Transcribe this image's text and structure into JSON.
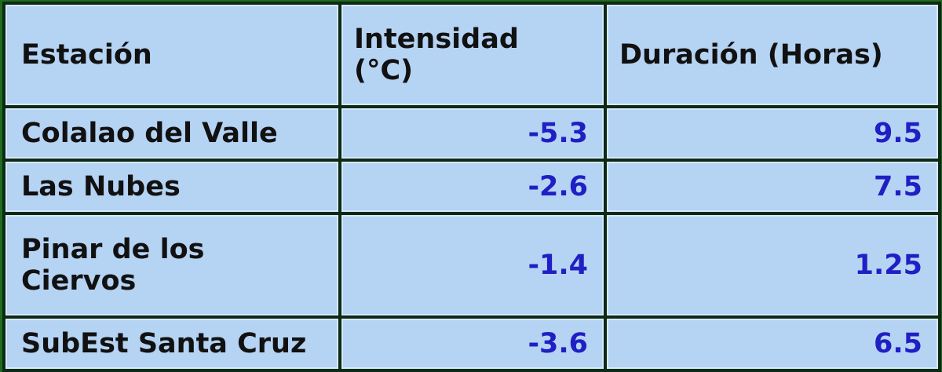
{
  "table": {
    "headers": [
      "Estación",
      "Intensidad (°C)",
      "Duración (Horas)"
    ],
    "rows": [
      [
        "Colalao del Valle",
        "-5.3",
        "9.5"
      ],
      [
        "Las Nubes",
        "-2.6",
        "7.5"
      ],
      [
        "Pinar de los Ciervos",
        "-1.4",
        "1.25"
      ],
      [
        "SubEst Santa Cruz",
        "-3.6",
        "6.5"
      ]
    ]
  },
  "colors": {
    "cell_bg": "#b5d3f3",
    "value_text": "#1f1fc4",
    "outer_border": "#1f6b1f"
  }
}
